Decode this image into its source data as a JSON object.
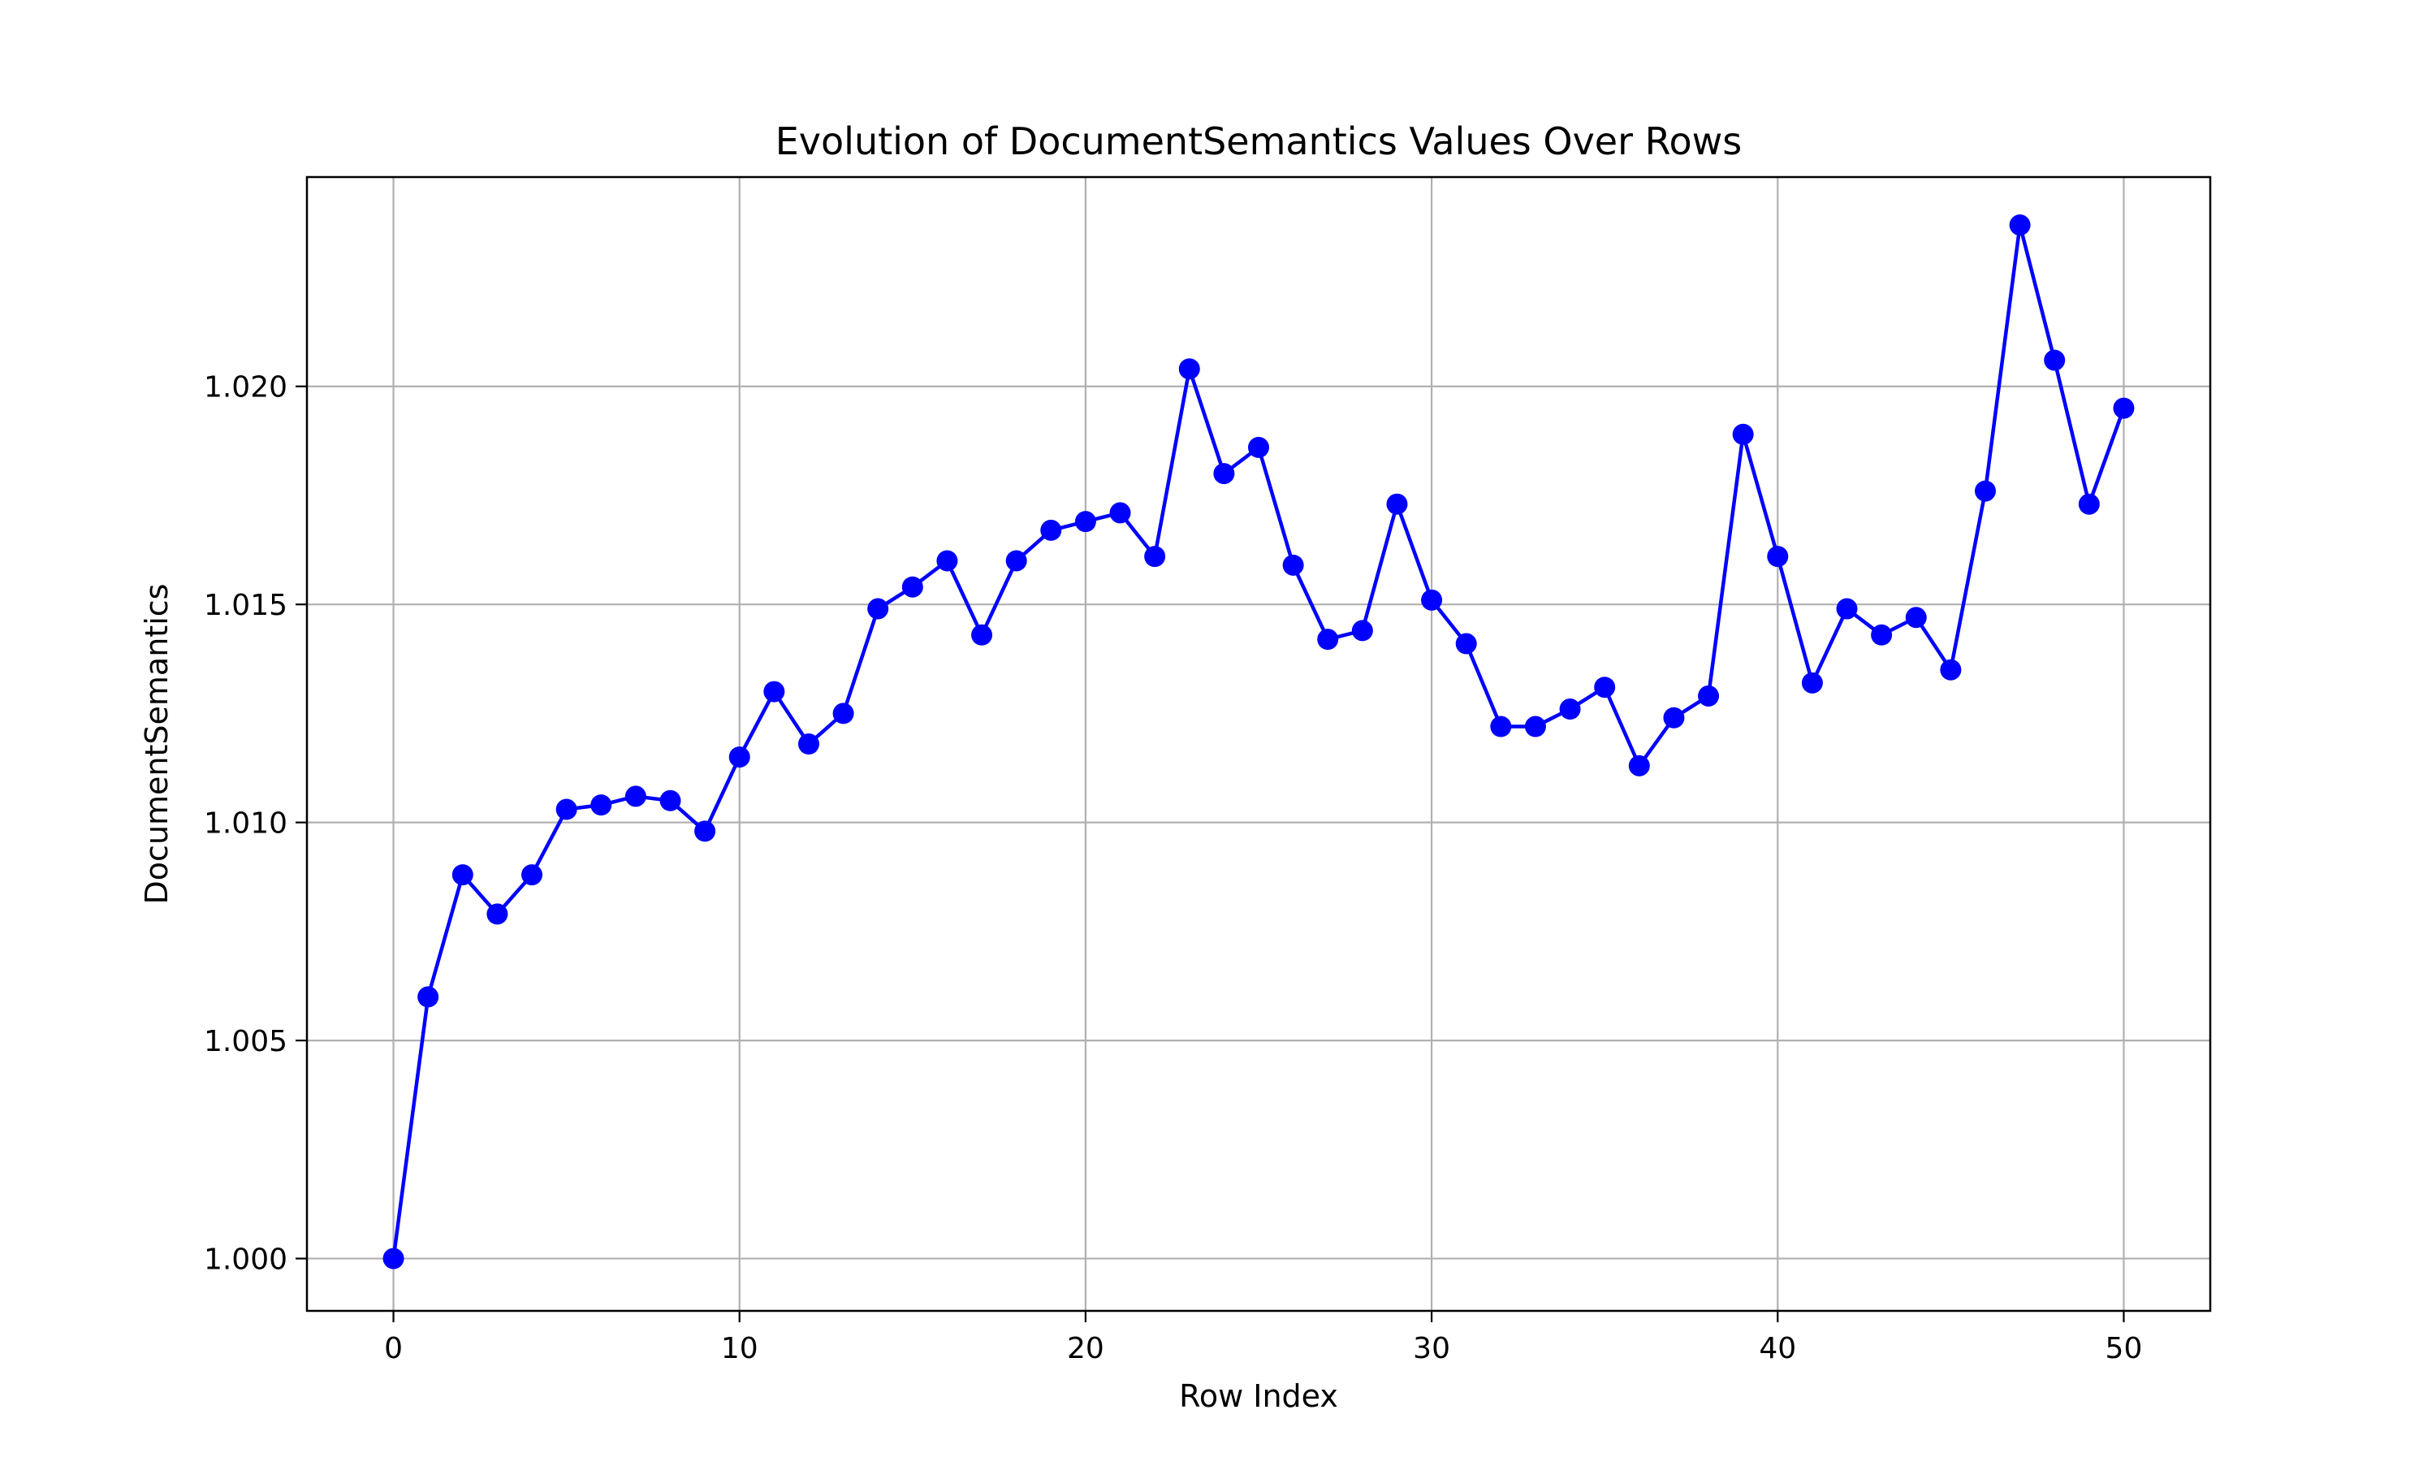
{
  "chart_data": {
    "type": "line",
    "title": "Evolution of DocumentSemantics Values Over Rows",
    "xlabel": "Row Index",
    "ylabel": "DocumentSemantics",
    "xlim": [
      -2.5,
      52.5
    ],
    "ylim": [
      0.9988,
      1.0248
    ],
    "xticks": [
      0,
      10,
      20,
      30,
      40,
      50
    ],
    "xtick_labels": [
      "0",
      "10",
      "20",
      "30",
      "40",
      "50"
    ],
    "yticks": [
      1.0,
      1.005,
      1.01,
      1.015,
      1.02
    ],
    "ytick_labels": [
      "1.000",
      "1.005",
      "1.010",
      "1.015",
      "1.020"
    ],
    "grid": true,
    "x": [
      0,
      1,
      2,
      3,
      4,
      5,
      6,
      7,
      8,
      9,
      10,
      11,
      12,
      13,
      14,
      15,
      16,
      17,
      18,
      19,
      20,
      21,
      22,
      23,
      24,
      25,
      26,
      27,
      28,
      29,
      30,
      31,
      32,
      33,
      34,
      35,
      36,
      37,
      38,
      39,
      40,
      41,
      42,
      43,
      44,
      45,
      46,
      47,
      48,
      49,
      50
    ],
    "series": [
      {
        "color": "#0000ff",
        "marker": "circle",
        "values": [
          1.0,
          1.006,
          1.0088,
          1.0079,
          1.0088,
          1.0103,
          1.0104,
          1.0106,
          1.0105,
          1.0098,
          1.0115,
          1.013,
          1.0118,
          1.0125,
          1.0149,
          1.0154,
          1.016,
          1.0143,
          1.016,
          1.0167,
          1.0169,
          1.0171,
          1.0161,
          1.0204,
          1.018,
          1.0186,
          1.0159,
          1.0142,
          1.0144,
          1.0173,
          1.0151,
          1.0141,
          1.0122,
          1.0122,
          1.0126,
          1.0131,
          1.0113,
          1.0124,
          1.0129,
          1.0189,
          1.0161,
          1.0132,
          1.0149,
          1.0143,
          1.0147,
          1.0135,
          1.0176,
          1.0237,
          1.0206,
          1.0173,
          1.0195
        ]
      }
    ]
  }
}
